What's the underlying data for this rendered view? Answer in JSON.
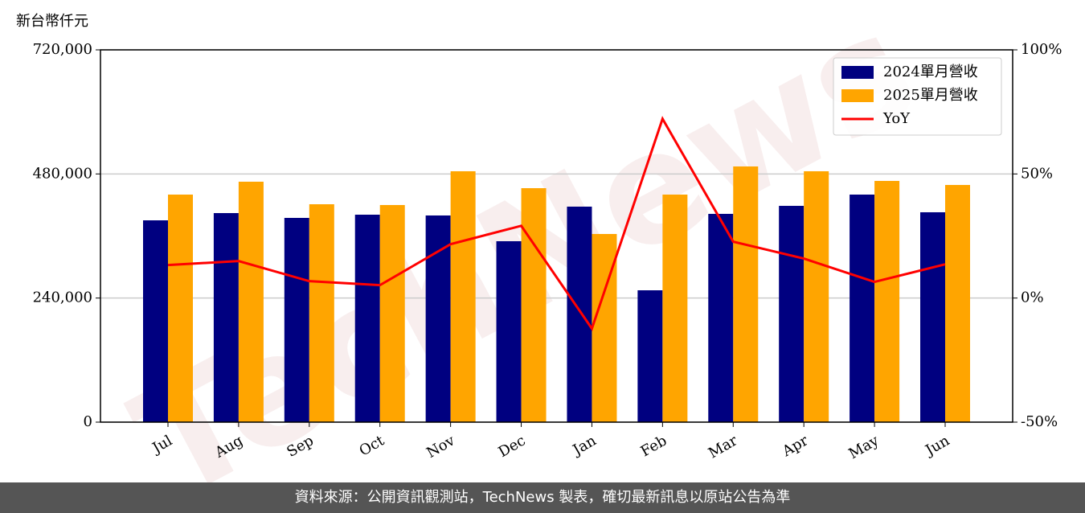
{
  "chart_data": {
    "type": "bar",
    "y_axis_title": "新台幣仟元",
    "watermark": "TechNews",
    "footer": "資料來源：公開資訊觀測站，TechNews 製表，確切最新訊息以原站公告為準",
    "categories": [
      "Jul",
      "Aug",
      "Sep",
      "Oct",
      "Nov",
      "Dec",
      "Jan",
      "Feb",
      "Mar",
      "Apr",
      "May",
      "Jun"
    ],
    "series": [
      {
        "name": "2024單月營收",
        "color": "#000080",
        "type": "bar",
        "axis": "y",
        "values": [
          390300,
          404300,
          395000,
          401200,
          399700,
          349900,
          416800,
          255000,
          402800,
          418300,
          440100,
          405900
        ]
      },
      {
        "name": "2025單月營收",
        "color": "#ffa500",
        "type": "bar",
        "axis": "y",
        "values": [
          440100,
          465000,
          421400,
          419900,
          485200,
          452500,
          363900,
          440100,
          494500,
          485200,
          466500,
          458700
        ]
      },
      {
        "name": "YoY",
        "color": "#ff0000",
        "type": "line",
        "axis": "y2",
        "values": [
          13.3,
          14.9,
          6.8,
          5.2,
          21.7,
          29.1,
          -12.3,
          72.2,
          22.7,
          15.9,
          6.5,
          13.6
        ]
      }
    ],
    "ylim": [
      0,
      720000
    ],
    "yticks": [
      0,
      {
        "value": 240000,
        "label": "240,000"
      },
      {
        "value": 480000,
        "label": "480,000"
      },
      {
        "value": 720000,
        "label": "720,000"
      }
    ],
    "y2lim": [
      -50,
      100
    ],
    "y2ticks": [
      {
        "value": -50,
        "label": "-50%"
      },
      {
        "value": 0,
        "label": "0%"
      },
      {
        "value": 50,
        "label": "50%"
      },
      {
        "value": 100,
        "label": "100%"
      }
    ],
    "grid": true,
    "legend": "upper right"
  }
}
